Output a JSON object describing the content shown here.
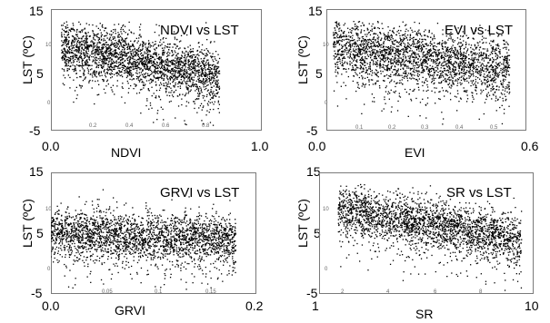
{
  "chart_data": [
    {
      "id": "ndvi",
      "type": "scatter",
      "title": "NDVI vs LST",
      "xlabel": "NDVI",
      "ylabel": "LST (ºC)",
      "xlim": [
        0.0,
        1.0
      ],
      "ylim": [
        -5,
        15
      ],
      "x_tick_labels": [
        "0.0",
        "1.0"
      ],
      "x_minor_tick_labels": [
        "0.2",
        "0.4",
        "0.6",
        "0.8"
      ],
      "y_tick_labels": [
        "15",
        "5",
        "-5"
      ],
      "y_minor_tick_labels": [
        "10",
        "0"
      ],
      "point_cloud": {
        "x_range": [
          0.05,
          0.8
        ],
        "y_at_start": 9,
        "y_at_end": 4,
        "spread": 2.2
      }
    },
    {
      "id": "evi",
      "type": "scatter",
      "title": "EVI vs LST",
      "xlabel": "EVI",
      "ylabel": "LST (ºC)",
      "xlim": [
        0.0,
        0.6
      ],
      "ylim": [
        -5,
        15
      ],
      "x_tick_labels": [
        "0.0",
        "0.6"
      ],
      "x_minor_tick_labels": [
        "0.1",
        "0.2",
        "0.3",
        "0.4",
        "0.5"
      ],
      "y_tick_labels": [
        "15",
        "5",
        "-5"
      ],
      "y_minor_tick_labels": [
        "10",
        "0"
      ],
      "point_cloud": {
        "x_range": [
          0.02,
          0.55
        ],
        "y_at_start": 9,
        "y_at_end": 5,
        "spread": 2.5
      }
    },
    {
      "id": "grvi",
      "type": "scatter",
      "title": "GRVI vs LST",
      "xlabel": "GRVI",
      "ylabel": "LST (ºC)",
      "xlim": [
        0.0,
        0.2
      ],
      "ylim": [
        -5,
        15
      ],
      "x_tick_labels": [
        "0.0",
        "0.2"
      ],
      "x_minor_tick_labels": [
        "0.05",
        "0.1",
        "0.15"
      ],
      "y_tick_labels": [
        "15",
        "5",
        "-5"
      ],
      "y_minor_tick_labels": [
        "10",
        "0"
      ],
      "point_cloud": {
        "x_range": [
          0.0,
          0.18
        ],
        "y_at_start": 5,
        "y_at_end": 4,
        "spread": 2.0
      }
    },
    {
      "id": "sr",
      "type": "scatter",
      "title": "SR vs LST",
      "xlabel": "SR",
      "ylabel": "LST (ºC)",
      "xlim": [
        1,
        10
      ],
      "ylim": [
        -5,
        15
      ],
      "x_tick_labels": [
        "1",
        "10"
      ],
      "x_minor_tick_labels": [
        "2",
        "4",
        "6",
        "8"
      ],
      "y_tick_labels": [
        "15",
        "5",
        "-5"
      ],
      "y_minor_tick_labels": [
        "10",
        "0"
      ],
      "point_cloud": {
        "x_range": [
          1.8,
          9.5
        ],
        "y_at_start": 9,
        "y_at_end": 4,
        "spread": 2.0
      }
    }
  ]
}
